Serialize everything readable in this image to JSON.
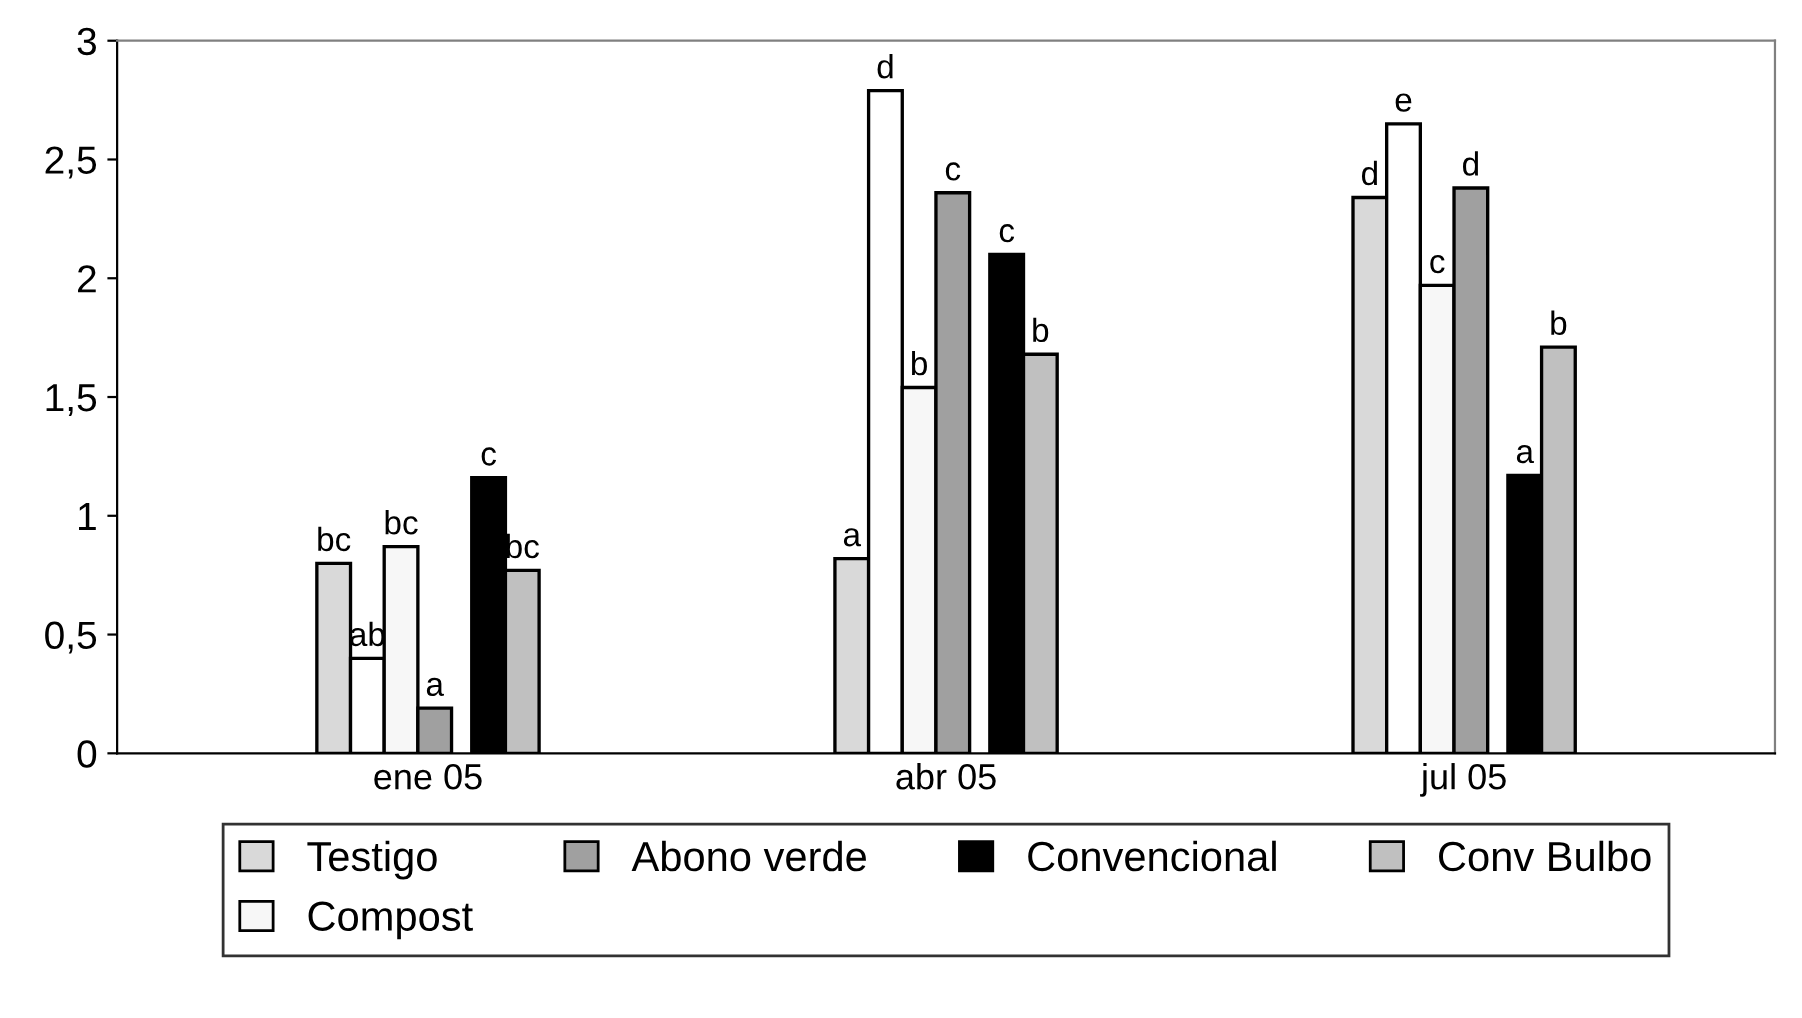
{
  "chart_data": {
    "type": "bar",
    "categories": [
      "ene 05",
      "abr 05",
      "jul 05"
    ],
    "series": [
      {
        "name": "Testigo",
        "color": "#d9d9d9",
        "values": [
          0.8,
          0.82,
          2.34
        ],
        "value_labels": [
          "bc",
          "a",
          "d"
        ]
      },
      {
        "color": "#ffffff",
        "values": [
          0.4,
          2.79,
          2.65
        ],
        "value_labels": [
          "ab",
          "d",
          "e"
        ]
      },
      {
        "name": "Compost",
        "color": "#f7f7f7",
        "values": [
          0.87,
          1.54,
          1.97
        ],
        "value_labels": [
          "bc",
          "b",
          "c"
        ]
      },
      {
        "name": "Abono verde",
        "color": "#a0a0a0",
        "values": [
          0.19,
          2.36,
          2.38
        ],
        "value_labels": [
          "a",
          "c",
          "d"
        ]
      },
      {
        "name": "Convencional",
        "color": "#000000",
        "values": [
          1.16,
          2.1,
          1.17
        ],
        "value_labels": [
          "c",
          "c",
          "a"
        ]
      },
      {
        "name": "Conv Bulbo",
        "color": "#c0c0c0",
        "values": [
          0.77,
          1.68,
          1.71
        ],
        "value_labels": [
          "bc",
          "b",
          "b"
        ]
      }
    ],
    "ylim": [
      0,
      3
    ],
    "yticks": [
      0,
      {
        "value": 0.5,
        "label": "0,5"
      },
      1,
      {
        "value": 1.5,
        "label": "1,5"
      },
      2,
      {
        "value": 2.5,
        "label": "2,5"
      },
      3
    ],
    "grid": false,
    "legend": "bottom"
  }
}
